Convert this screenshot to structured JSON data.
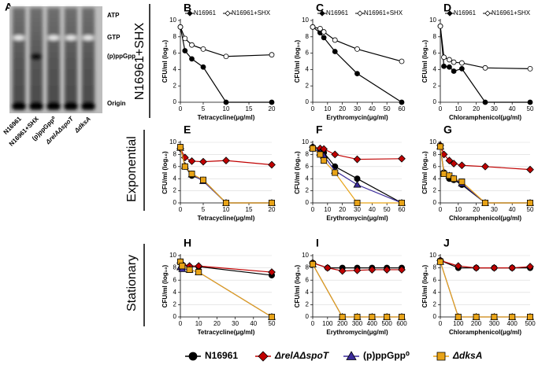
{
  "gel": {
    "panel": "A",
    "bands": [
      "ATP",
      "GTP",
      "(p)ppGpp",
      "Origin"
    ],
    "lanes": [
      "N16961",
      "N16961+SHX",
      "(p)ppGpp⁰",
      "ΔrelAΔspoT",
      "ΔdksA"
    ]
  },
  "row_labels": [
    "N16961+SHX",
    "Exponential",
    "Stationary"
  ],
  "legend": [
    {
      "name": "N16961",
      "color": "#000000",
      "marker": "circle",
      "italic": false
    },
    {
      "name": "ΔrelAΔspoT",
      "color": "#c00000",
      "marker": "diamond",
      "italic": true
    },
    {
      "name": "(p)ppGpp⁰",
      "color": "#3a2a9a",
      "marker": "triangle",
      "italic": false
    },
    {
      "name": "ΔdksA",
      "color": "#e8a317",
      "marker": "square",
      "italic": true
    }
  ],
  "chart_data": [
    {
      "type": "line",
      "panel": "B",
      "x_label": "Tetracycline(μg/ml)",
      "y_label": "CFU/ml (log₁₀)",
      "xlim": [
        0,
        20
      ],
      "xticks": [
        0,
        5,
        10,
        15,
        20
      ],
      "ylim": [
        0,
        10
      ],
      "yticks": [
        0,
        2,
        4,
        6,
        8,
        10
      ],
      "grid": false,
      "legend": true,
      "x": [
        0,
        1,
        2.5,
        5,
        10,
        20
      ],
      "series": [
        {
          "name": "N16961",
          "color": "#000000",
          "marker": "circle",
          "values": [
            9.2,
            6.3,
            5.3,
            4.3,
            0,
            0
          ]
        },
        {
          "name": "N16961+SHX",
          "color": "#000000",
          "fill": "#ffffff",
          "marker": "circle",
          "values": [
            9.2,
            7.8,
            7,
            6.5,
            5.6,
            5.8
          ]
        }
      ]
    },
    {
      "type": "line",
      "panel": "C",
      "x_label": "Erythromycin(μg/ml)",
      "y_label": "CFU/ml (log₁₀)",
      "xlim": [
        0,
        60
      ],
      "xticks": [
        0,
        10,
        20,
        30,
        40,
        50,
        60
      ],
      "ylim": [
        0,
        10
      ],
      "yticks": [
        0,
        2,
        4,
        6,
        8,
        10
      ],
      "grid": false,
      "legend": true,
      "x": [
        0,
        5,
        7.5,
        15,
        30,
        60
      ],
      "series": [
        {
          "name": "N16961",
          "color": "#000000",
          "marker": "circle",
          "values": [
            9.2,
            8.5,
            7.9,
            6.2,
            3.5,
            0
          ]
        },
        {
          "name": "N16961+SHX",
          "color": "#000000",
          "fill": "#ffffff",
          "marker": "circle",
          "values": [
            9.2,
            9,
            8.6,
            7.6,
            6.5,
            5
          ]
        }
      ]
    },
    {
      "type": "line",
      "panel": "D",
      "x_label": "Chloramphenicol(μg/ml)",
      "y_label": "CFU/ml (log₁₀)",
      "xlim": [
        0,
        50
      ],
      "xticks": [
        0,
        10,
        20,
        30,
        40,
        50
      ],
      "ylim": [
        0,
        10
      ],
      "yticks": [
        0,
        2,
        4,
        6,
        8,
        10
      ],
      "grid": false,
      "legend": true,
      "x": [
        0,
        2,
        5,
        7.5,
        12,
        25,
        50
      ],
      "series": [
        {
          "name": "N16961",
          "color": "#000000",
          "marker": "circle",
          "values": [
            9.3,
            4.4,
            4.3,
            3.8,
            4.1,
            0,
            0
          ]
        },
        {
          "name": "N16961+SHX",
          "color": "#000000",
          "fill": "#ffffff",
          "marker": "circle",
          "values": [
            9.3,
            5.5,
            5.2,
            4.9,
            4.8,
            4.2,
            4.1
          ]
        }
      ]
    },
    {
      "type": "line",
      "panel": "E",
      "x_label": "Tetracycline(μg/ml)",
      "y_label": "CFU/ml (log₁₀)",
      "xlim": [
        0,
        20
      ],
      "xticks": [
        0,
        5,
        10,
        15,
        20
      ],
      "ylim": [
        0,
        10
      ],
      "yticks": [
        0,
        2,
        4,
        6,
        8,
        10
      ],
      "grid": true,
      "legend": false,
      "x": [
        0,
        1,
        2.5,
        5,
        10,
        20
      ],
      "series": [
        {
          "color": "#000000",
          "marker": "circle",
          "values": [
            9.2,
            6,
            4.5,
            3.8,
            0,
            0
          ]
        },
        {
          "color": "#c00000",
          "marker": "diamond",
          "values": [
            9,
            7.5,
            6.9,
            6.8,
            7,
            6.3
          ]
        },
        {
          "color": "#3a2a9a",
          "marker": "triangle",
          "values": [
            9.1,
            6.1,
            4.7,
            3.6,
            0,
            0
          ]
        },
        {
          "color": "#e8a317",
          "marker": "square",
          "values": [
            9.2,
            6,
            4.8,
            3.8,
            0,
            0
          ]
        }
      ]
    },
    {
      "type": "line",
      "panel": "F",
      "x_label": "Erythromycin(μg/ml)",
      "y_label": "CFU/ml (log₁₀)",
      "xlim": [
        0,
        60
      ],
      "xticks": [
        0,
        10,
        20,
        30,
        40,
        50,
        60
      ],
      "ylim": [
        0,
        10
      ],
      "yticks": [
        0,
        2,
        4,
        6,
        8,
        10
      ],
      "grid": true,
      "legend": false,
      "x": [
        0,
        5,
        7.5,
        15,
        30,
        60
      ],
      "series": [
        {
          "color": "#000000",
          "marker": "circle",
          "values": [
            9.2,
            8.8,
            8.3,
            6,
            4,
            0
          ]
        },
        {
          "color": "#c00000",
          "marker": "diamond",
          "values": [
            9.2,
            9,
            8.9,
            8,
            7.2,
            7.3
          ]
        },
        {
          "color": "#3a2a9a",
          "marker": "triangle",
          "values": [
            9.1,
            8.3,
            7.8,
            5.3,
            3,
            0
          ]
        },
        {
          "color": "#e8a317",
          "marker": "square",
          "values": [
            9,
            8,
            7,
            5,
            0,
            0
          ]
        }
      ]
    },
    {
      "type": "line",
      "panel": "G",
      "x_label": "Chloramphenicol(μg/ml)",
      "y_label": "CFU/ml (log₁₀)",
      "xlim": [
        0,
        50
      ],
      "xticks": [
        0,
        10,
        20,
        30,
        40,
        50
      ],
      "ylim": [
        0,
        10
      ],
      "yticks": [
        0,
        2,
        4,
        6,
        8,
        10
      ],
      "grid": true,
      "legend": false,
      "x": [
        0,
        2,
        5,
        7.5,
        12,
        25,
        50
      ],
      "series": [
        {
          "color": "#000000",
          "marker": "circle",
          "values": [
            9.3,
            5,
            4,
            3.8,
            3,
            0,
            0
          ]
        },
        {
          "color": "#c00000",
          "marker": "diamond",
          "values": [
            9.5,
            8,
            7,
            6.5,
            6.2,
            6,
            5.5
          ]
        },
        {
          "color": "#3a2a9a",
          "marker": "triangle",
          "values": [
            9.3,
            5,
            4.5,
            4,
            3.2,
            0,
            0
          ]
        },
        {
          "color": "#e8a317",
          "marker": "square",
          "values": [
            9.3,
            4.8,
            4.5,
            4,
            3.5,
            0,
            0
          ]
        }
      ]
    },
    {
      "type": "line",
      "panel": "H",
      "x_label": "Tetracycline(μg/ml)",
      "y_label": "CFU/ml (log₁₀)",
      "xlim": [
        0,
        50
      ],
      "xticks": [
        0,
        10,
        20,
        30,
        40,
        50
      ],
      "ylim": [
        0,
        10
      ],
      "yticks": [
        0,
        2,
        4,
        6,
        8,
        10
      ],
      "grid": true,
      "legend": false,
      "x": [
        0,
        1,
        5,
        10,
        50
      ],
      "series": [
        {
          "color": "#000000",
          "marker": "circle",
          "values": [
            9,
            8.5,
            8.2,
            8.2,
            6.8
          ]
        },
        {
          "color": "#c00000",
          "marker": "diamond",
          "values": [
            8.8,
            8.6,
            8.3,
            8.3,
            7.3
          ]
        },
        {
          "color": "#3a2a9a",
          "marker": "triangle",
          "values": [
            8.1,
            7.8,
            7.7,
            7.3,
            0
          ]
        },
        {
          "color": "#e8a317",
          "marker": "square",
          "values": [
            9,
            8.3,
            7.7,
            7.3,
            0
          ]
        }
      ]
    },
    {
      "type": "line",
      "panel": "I",
      "x_label": "Erythromycin(μg/ml)",
      "y_label": "CFU/ml (log₁₀)",
      "xlim": [
        0,
        600
      ],
      "xticks": [
        0,
        100,
        200,
        300,
        400,
        500,
        600
      ],
      "ylim": [
        0,
        10
      ],
      "yticks": [
        0,
        2,
        4,
        6,
        8,
        10
      ],
      "grid": true,
      "legend": false,
      "x": [
        0,
        100,
        200,
        300,
        400,
        500,
        600
      ],
      "series": [
        {
          "color": "#000000",
          "marker": "circle",
          "values": [
            8.8,
            8,
            8,
            8,
            8,
            8,
            8
          ]
        },
        {
          "color": "#c00000",
          "marker": "diamond",
          "values": [
            8.8,
            8,
            7.5,
            7.6,
            7.7,
            7.7,
            7.7
          ]
        },
        {
          "color": "#3a2a9a",
          "marker": "triangle",
          "x": [
            0,
            200,
            300,
            400,
            500,
            600
          ],
          "values": [
            8.6,
            0,
            0,
            0,
            0,
            0
          ]
        },
        {
          "color": "#e8a317",
          "marker": "square",
          "x": [
            0,
            200,
            300,
            400,
            500,
            600
          ],
          "values": [
            8.6,
            0,
            0,
            0,
            0,
            0
          ]
        }
      ]
    },
    {
      "type": "line",
      "panel": "J",
      "x_label": "Chloramphenicol(μg/ml)",
      "y_label": "CFU/ml (log₁₀)",
      "xlim": [
        0,
        500
      ],
      "xticks": [
        0,
        100,
        200,
        300,
        400,
        500
      ],
      "ylim": [
        0,
        10
      ],
      "yticks": [
        0,
        2,
        4,
        6,
        8,
        10
      ],
      "grid": true,
      "legend": false,
      "x": [
        0,
        100,
        200,
        300,
        400,
        500
      ],
      "series": [
        {
          "color": "#000000",
          "marker": "circle",
          "values": [
            9.2,
            8,
            8,
            8,
            8,
            8
          ]
        },
        {
          "color": "#c00000",
          "marker": "diamond",
          "values": [
            9.2,
            8.3,
            8,
            8,
            8,
            8.2
          ]
        },
        {
          "color": "#3a2a9a",
          "marker": "triangle",
          "values": [
            9,
            0,
            0,
            0,
            0,
            0
          ]
        },
        {
          "color": "#e8a317",
          "marker": "square",
          "values": [
            9,
            0,
            0,
            0,
            0,
            0
          ]
        }
      ]
    }
  ]
}
